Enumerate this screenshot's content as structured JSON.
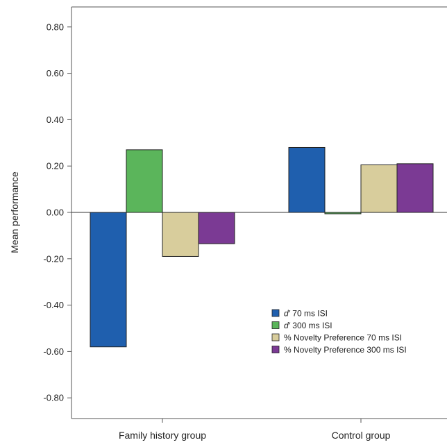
{
  "chart_data": {
    "type": "bar",
    "title": "",
    "xlabel": "",
    "ylabel": "Mean performance",
    "ylim": [
      -0.9,
      0.9
    ],
    "yticks": [
      0.8,
      0.6,
      0.4,
      0.2,
      0.0,
      -0.2,
      -0.4,
      -0.6,
      -0.8
    ],
    "ytick_labels": [
      "0.80",
      "0.60",
      "0.40",
      "0.20",
      "0.00",
      "-0.20",
      "-0.40",
      "-0.60",
      "-0.80"
    ],
    "categories": [
      "Family history group",
      "Control group"
    ],
    "series": [
      {
        "name_prefix": "d′",
        "name_suffix": " 70 ms ISI",
        "color": "#1f5fae",
        "values": [
          -0.58,
          0.28
        ]
      },
      {
        "name_prefix": "d′",
        "name_suffix": " 300 ms ISI",
        "color": "#5bb55b",
        "values": [
          0.27,
          -0.005
        ]
      },
      {
        "name_prefix": "",
        "name_suffix": "% Novelty Preference 70 ms ISI",
        "color": "#d8cd9c",
        "values": [
          -0.19,
          0.205
        ]
      },
      {
        "name_prefix": "",
        "name_suffix": "% Novelty Preference 300 ms ISI",
        "color": "#7b3a94",
        "values": [
          -0.135,
          0.21
        ]
      }
    ],
    "grid": false,
    "legend_position": "lower-right"
  }
}
